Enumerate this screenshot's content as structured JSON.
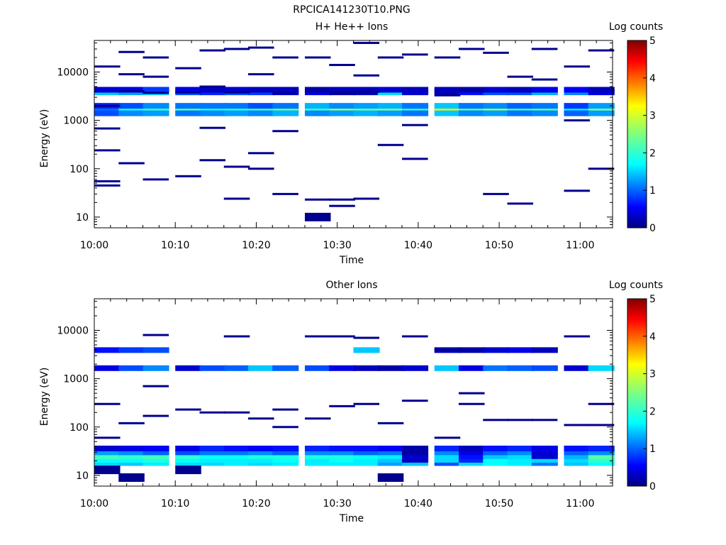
{
  "figure": {
    "title": "RPCICA141230T10.PNG"
  },
  "chart_data": [
    {
      "type": "heatmap",
      "title": "H+ He++ Ions",
      "xlabel": "Time",
      "ylabel": "Energy (eV)",
      "x_ticks": [
        "10:00",
        "10:10",
        "10:20",
        "10:30",
        "10:40",
        "10:50",
        "11:00"
      ],
      "x_range": [
        "10:00",
        "11:04"
      ],
      "y_scale": "log",
      "y_ticks": [
        "10",
        "100",
        "1000",
        "10000"
      ],
      "y_range": [
        6,
        45000
      ],
      "colorbar": {
        "label": "Log counts",
        "ticks": [
          "0",
          "1",
          "2",
          "3",
          "4",
          "5"
        ],
        "range": [
          0,
          5
        ]
      },
      "time_bins": [
        "10:00",
        "10:03",
        "10:06",
        "10:10",
        "10:13",
        "10:16",
        "10:19",
        "10:22",
        "10:26",
        "10:29",
        "10:32",
        "10:35",
        "10:38",
        "10:42",
        "10:45",
        "10:48",
        "10:51",
        "10:54",
        "10:58",
        "11:01"
      ],
      "bands": [
        {
          "energy_eV": 1600,
          "log_counts": [
            2.2,
            2.8,
            2.9,
            2.8,
            2.6,
            2.7,
            2.9,
            3.2,
            2.8,
            3.0,
            2.7,
            2.9,
            2.6,
            3.5,
            2.6,
            3.1,
            2.5,
            2.7,
            2.5,
            3.0
          ]
        },
        {
          "energy_eV": 1800,
          "log_counts": [
            1.2,
            2.0,
            2.2,
            2.3,
            2.0,
            2.1,
            2.2,
            2.4,
            2.2,
            2.6,
            2.4,
            2.5,
            2.1,
            3.2,
            2.3,
            2.6,
            2.2,
            2.3,
            1.8,
            2.5
          ]
        },
        {
          "energy_eV": 2000,
          "log_counts": [
            0.8,
            1.0,
            1.3,
            1.2,
            1.2,
            1.2,
            1.0,
            1.2,
            1.5,
            1.3,
            1.4,
            1.5,
            1.2,
            1.6,
            1.2,
            1.3,
            1.1,
            1.2,
            0.9,
            1.4
          ]
        },
        {
          "energy_eV": 1400,
          "log_counts": [
            1.0,
            1.3,
            1.4,
            1.2,
            1.3,
            1.4,
            1.3,
            1.5,
            1.3,
            1.4,
            1.5,
            1.4,
            1.2,
            1.6,
            1.3,
            1.4,
            1.2,
            1.3,
            1.1,
            1.4
          ]
        },
        {
          "energy_eV": 3800,
          "log_counts": [
            1.6,
            1.4,
            1.7,
            1.0,
            0.8,
            1.0,
            0.9,
            0.6,
            0.5,
            0.2,
            0.3,
            1.7,
            0.4,
            0.3,
            0.7,
            1.0,
            1.0,
            1.5,
            1.3,
            0.5
          ]
        },
        {
          "energy_eV": 4300,
          "log_counts": [
            0.4,
            0.5,
            0.9,
            0.5,
            0.3,
            0.4,
            0.3,
            0.3,
            0.2,
            0.3,
            0.3,
            0.4,
            0.3,
            0.3,
            0.3,
            0.4,
            0.3,
            0.5,
            0.6,
            0.3
          ]
        }
      ],
      "sparse_bins": [
        {
          "t": 0,
          "energy_eV": 13000
        },
        {
          "t": 0,
          "energy_eV": 2000
        },
        {
          "t": 0,
          "energy_eV": 680
        },
        {
          "t": 0,
          "energy_eV": 240
        },
        {
          "t": 0,
          "energy_eV": 55
        },
        {
          "t": 0,
          "energy_eV": 45
        },
        {
          "t": 1,
          "energy_eV": 26000
        },
        {
          "t": 1,
          "energy_eV": 9000
        },
        {
          "t": 1,
          "energy_eV": 4000
        },
        {
          "t": 1,
          "energy_eV": 130
        },
        {
          "t": 2,
          "energy_eV": 20000
        },
        {
          "t": 2,
          "energy_eV": 8000
        },
        {
          "t": 2,
          "energy_eV": 3700
        },
        {
          "t": 2,
          "energy_eV": 60
        },
        {
          "t": 3,
          "energy_eV": 12000
        },
        {
          "t": 3,
          "energy_eV": 3800
        },
        {
          "t": 3,
          "energy_eV": 70
        },
        {
          "t": 4,
          "energy_eV": 28000
        },
        {
          "t": 4,
          "energy_eV": 5000
        },
        {
          "t": 4,
          "energy_eV": 700
        },
        {
          "t": 4,
          "energy_eV": 150
        },
        {
          "t": 5,
          "energy_eV": 30000
        },
        {
          "t": 5,
          "energy_eV": 3800
        },
        {
          "t": 5,
          "energy_eV": 110
        },
        {
          "t": 5,
          "energy_eV": 24
        },
        {
          "t": 6,
          "energy_eV": 32000
        },
        {
          "t": 6,
          "energy_eV": 9000
        },
        {
          "t": 6,
          "energy_eV": 210
        },
        {
          "t": 6,
          "energy_eV": 100
        },
        {
          "t": 7,
          "energy_eV": 20000
        },
        {
          "t": 7,
          "energy_eV": 3600
        },
        {
          "t": 7,
          "energy_eV": 600
        },
        {
          "t": 7,
          "energy_eV": 30
        },
        {
          "t": 8,
          "energy_eV": 20000
        },
        {
          "t": 8,
          "energy_eV": 10
        },
        {
          "t": 8,
          "energy_eV": 23
        },
        {
          "t": 9,
          "energy_eV": 14000
        },
        {
          "t": 9,
          "energy_eV": 3700
        },
        {
          "t": 9,
          "energy_eV": 17
        },
        {
          "t": 9,
          "energy_eV": 23
        },
        {
          "t": 10,
          "energy_eV": 40000
        },
        {
          "t": 10,
          "energy_eV": 8500
        },
        {
          "t": 10,
          "energy_eV": 3900
        },
        {
          "t": 10,
          "energy_eV": 24
        },
        {
          "t": 11,
          "energy_eV": 20000
        },
        {
          "t": 11,
          "energy_eV": 310
        },
        {
          "t": 12,
          "energy_eV": 23000
        },
        {
          "t": 12,
          "energy_eV": 800
        },
        {
          "t": 12,
          "energy_eV": 160
        },
        {
          "t": 13,
          "energy_eV": 20000
        },
        {
          "t": 13,
          "energy_eV": 3300
        },
        {
          "t": 14,
          "energy_eV": 30000
        },
        {
          "t": 14,
          "energy_eV": 4300
        },
        {
          "t": 15,
          "energy_eV": 25000
        },
        {
          "t": 15,
          "energy_eV": 30
        },
        {
          "t": 16,
          "energy_eV": 8000
        },
        {
          "t": 16,
          "energy_eV": 19
        },
        {
          "t": 17,
          "energy_eV": 30000
        },
        {
          "t": 17,
          "energy_eV": 7000
        },
        {
          "t": 18,
          "energy_eV": 13000
        },
        {
          "t": 18,
          "energy_eV": 1000
        },
        {
          "t": 18,
          "energy_eV": 35
        },
        {
          "t": 19,
          "energy_eV": 28000
        },
        {
          "t": 19,
          "energy_eV": 100
        }
      ]
    },
    {
      "type": "heatmap",
      "title": "Other Ions",
      "xlabel": "Time",
      "ylabel": "Energy (eV)",
      "x_ticks": [
        "10:00",
        "10:10",
        "10:20",
        "10:30",
        "10:40",
        "10:50",
        "11:00"
      ],
      "x_range": [
        "10:00",
        "11:04"
      ],
      "y_scale": "log",
      "y_ticks": [
        "10",
        "100",
        "1000",
        "10000"
      ],
      "y_range": [
        6,
        45000
      ],
      "colorbar": {
        "label": "Log counts",
        "ticks": [
          "0",
          "1",
          "2",
          "3",
          "4",
          "5"
        ],
        "range": [
          0,
          5
        ]
      },
      "time_bins": [
        "10:00",
        "10:03",
        "10:06",
        "10:10",
        "10:13",
        "10:16",
        "10:19",
        "10:22",
        "10:26",
        "10:29",
        "10:32",
        "10:35",
        "10:38",
        "10:42",
        "10:45",
        "10:48",
        "10:51",
        "10:54",
        "10:58",
        "11:01"
      ],
      "bands": [
        {
          "energy_eV": 18,
          "log_counts": [
            1.7,
            1.6,
            1.8,
            1.7,
            1.7,
            1.8,
            1.7,
            1.8,
            1.8,
            1.8,
            1.8,
            1.4,
            1.6,
            1.0,
            1.7,
            1.9,
            1.8,
            1.2,
            1.6,
            1.9
          ]
        },
        {
          "energy_eV": 21,
          "log_counts": [
            1.9,
            1.9,
            2.0,
            1.9,
            1.8,
            1.8,
            1.8,
            1.9,
            1.8,
            1.9,
            1.8,
            1.6,
            0.3,
            1.7,
            0.8,
            1.9,
            1.8,
            1.7,
            1.7,
            2.1
          ]
        },
        {
          "energy_eV": 25,
          "log_counts": [
            2.2,
            2.1,
            2.2,
            2.1,
            1.9,
            1.9,
            2.0,
            2.0,
            2.0,
            2.0,
            1.9,
            1.8,
            0.4,
            1.7,
            0.7,
            1.6,
            1.7,
            0.4,
            1.5,
            2.3
          ]
        },
        {
          "energy_eV": 30,
          "log_counts": [
            1.4,
            1.3,
            1.1,
            1.0,
            1.2,
            1.2,
            1.3,
            1.1,
            1.3,
            1.3,
            1.1,
            1.2,
            0.2,
            1.3,
            0.5,
            1.1,
            1.3,
            0.4,
            1.1,
            1.3
          ]
        },
        {
          "energy_eV": 36,
          "log_counts": [
            0.4,
            0.5,
            0.6,
            0.5,
            0.8,
            0.7,
            0.6,
            0.7,
            0.8,
            0.7,
            0.7,
            0.6,
            0.2,
            0.8,
            0.3,
            0.7,
            0.8,
            0.5,
            0.7,
            0.8
          ]
        },
        {
          "energy_eV": 1650,
          "log_counts": [
            0.5,
            1.0,
            1.3,
            0.4,
            1.0,
            1.1,
            1.6,
            1.1,
            1.0,
            0.5,
            0.3,
            0.2,
            0.4,
            1.6,
            0.5,
            1.2,
            1.1,
            1.0,
            0.4,
            1.7
          ]
        },
        {
          "energy_eV": 3900,
          "log_counts": [
            0.7,
            0.9,
            1.0,
            0.0,
            0.0,
            0.0,
            0.0,
            0.0,
            0.0,
            0.0,
            1.6,
            0.0,
            0.0,
            0.3,
            0.2,
            0.4,
            0.5,
            0.3,
            0.0,
            0.0
          ]
        }
      ],
      "sparse_bins": [
        {
          "t": 0,
          "energy_eV": 13
        },
        {
          "t": 0,
          "energy_eV": 60
        },
        {
          "t": 0,
          "energy_eV": 300
        },
        {
          "t": 1,
          "energy_eV": 9
        },
        {
          "t": 1,
          "energy_eV": 120
        },
        {
          "t": 2,
          "energy_eV": 8000
        },
        {
          "t": 2,
          "energy_eV": 700
        },
        {
          "t": 2,
          "energy_eV": 170
        },
        {
          "t": 3,
          "energy_eV": 13
        },
        {
          "t": 3,
          "energy_eV": 230
        },
        {
          "t": 4,
          "energy_eV": 200
        },
        {
          "t": 5,
          "energy_eV": 7500
        },
        {
          "t": 5,
          "energy_eV": 200
        },
        {
          "t": 6,
          "energy_eV": 150
        },
        {
          "t": 7,
          "energy_eV": 230
        },
        {
          "t": 7,
          "energy_eV": 100
        },
        {
          "t": 8,
          "energy_eV": 7500
        },
        {
          "t": 8,
          "energy_eV": 150
        },
        {
          "t": 9,
          "energy_eV": 7500
        },
        {
          "t": 9,
          "energy_eV": 270
        },
        {
          "t": 10,
          "energy_eV": 7000
        },
        {
          "t": 10,
          "energy_eV": 300
        },
        {
          "t": 11,
          "energy_eV": 9
        },
        {
          "t": 11,
          "energy_eV": 120
        },
        {
          "t": 12,
          "energy_eV": 7500
        },
        {
          "t": 12,
          "energy_eV": 350
        },
        {
          "t": 13,
          "energy_eV": 4000
        },
        {
          "t": 13,
          "energy_eV": 60
        },
        {
          "t": 14,
          "energy_eV": 500
        },
        {
          "t": 14,
          "energy_eV": 300
        },
        {
          "t": 15,
          "energy_eV": 140
        },
        {
          "t": 16,
          "energy_eV": 140
        },
        {
          "t": 17,
          "energy_eV": 140
        },
        {
          "t": 18,
          "energy_eV": 7500
        },
        {
          "t": 18,
          "energy_eV": 110
        },
        {
          "t": 19,
          "energy_eV": 300
        },
        {
          "t": 19,
          "energy_eV": 110
        }
      ]
    }
  ]
}
